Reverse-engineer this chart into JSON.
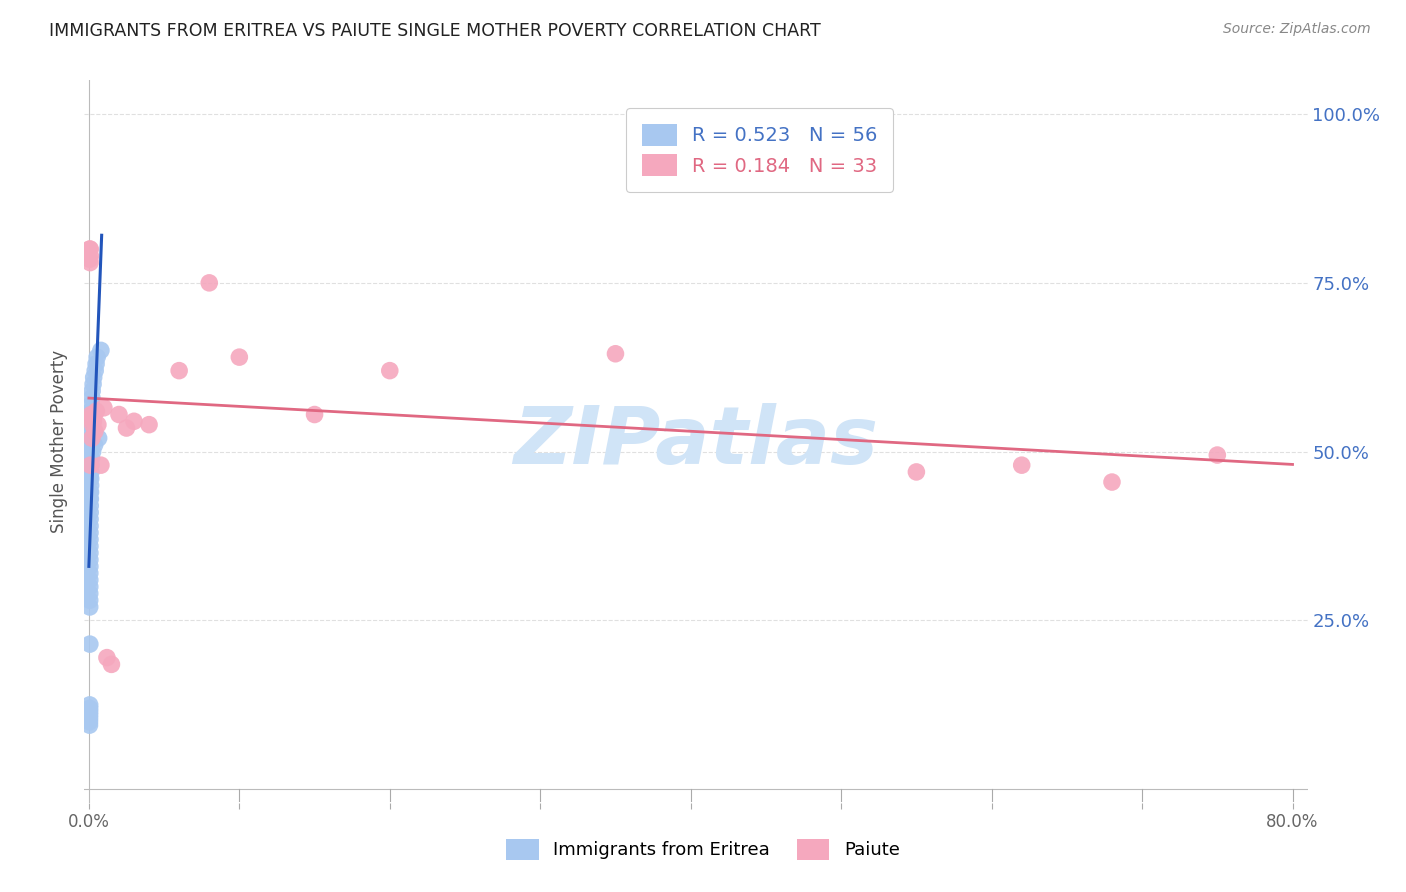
{
  "title": "IMMIGRANTS FROM ERITREA VS PAIUTE SINGLE MOTHER POVERTY CORRELATION CHART",
  "source": "Source: ZipAtlas.com",
  "ylabel": "Single Mother Poverty",
  "legend_eritrea_r": "0.523",
  "legend_eritrea_n": "56",
  "legend_paiute_r": "0.184",
  "legend_paiute_n": "33",
  "blue_color": "#a8c8f0",
  "pink_color": "#f5a8be",
  "blue_line_color": "#2255bb",
  "pink_line_color": "#e06882",
  "watermark_color": "#d0e4f7",
  "background_color": "#ffffff",
  "grid_color": "#e0e0e0",
  "right_axis_color": "#4472c4",
  "title_color": "#222222",
  "source_color": "#888888",
  "eritrea_x": [
    0.0004,
    0.00042,
    0.00045,
    0.00048,
    0.0005,
    0.0005,
    0.00052,
    0.00054,
    0.00055,
    0.00056,
    0.00058,
    0.0006,
    0.0006,
    0.00062,
    0.00063,
    0.00065,
    0.00065,
    0.00067,
    0.00068,
    0.0007,
    0.0007,
    0.0007,
    0.00072,
    0.00074,
    0.00075,
    0.00075,
    0.00078,
    0.0008,
    0.00082,
    0.00085,
    0.00088,
    0.0009,
    0.00092,
    0.00095,
    0.00098,
    0.001,
    0.00105,
    0.0011,
    0.00115,
    0.0012,
    0.0013,
    0.0014,
    0.0015,
    0.0016,
    0.0018,
    0.002,
    0.0022,
    0.0025,
    0.0028,
    0.0032,
    0.0038,
    0.0042,
    0.0048,
    0.0055,
    0.0065,
    0.008
  ],
  "eritrea_y": [
    0.095,
    0.1,
    0.105,
    0.11,
    0.115,
    0.43,
    0.12,
    0.125,
    0.27,
    0.28,
    0.29,
    0.3,
    0.44,
    0.31,
    0.32,
    0.215,
    0.46,
    0.33,
    0.34,
    0.35,
    0.36,
    0.47,
    0.48,
    0.37,
    0.38,
    0.49,
    0.39,
    0.4,
    0.5,
    0.51,
    0.41,
    0.42,
    0.52,
    0.53,
    0.43,
    0.54,
    0.55,
    0.44,
    0.45,
    0.46,
    0.56,
    0.47,
    0.48,
    0.57,
    0.49,
    0.58,
    0.59,
    0.5,
    0.6,
    0.61,
    0.51,
    0.62,
    0.63,
    0.64,
    0.52,
    0.65
  ],
  "paiute_x": [
    0.0005,
    0.00055,
    0.0008,
    0.0009,
    0.00095,
    0.001,
    0.0012,
    0.0015,
    0.002,
    0.0025,
    0.003,
    0.0035,
    0.004,
    0.005,
    0.006,
    0.008,
    0.01,
    0.012,
    0.015,
    0.02,
    0.025,
    0.03,
    0.04,
    0.06,
    0.08,
    0.1,
    0.15,
    0.2,
    0.35,
    0.55,
    0.62,
    0.68,
    0.75
  ],
  "paiute_y": [
    0.8,
    0.785,
    0.78,
    0.8,
    0.79,
    0.48,
    0.55,
    0.555,
    0.52,
    0.54,
    0.545,
    0.555,
    0.53,
    0.56,
    0.54,
    0.48,
    0.565,
    0.195,
    0.185,
    0.555,
    0.535,
    0.545,
    0.54,
    0.62,
    0.75,
    0.64,
    0.555,
    0.62,
    0.645,
    0.47,
    0.48,
    0.455,
    0.495
  ],
  "xlim_max": 0.8,
  "ylim_max": 1.05,
  "xtick_positions": [
    0.0,
    0.1,
    0.2,
    0.3,
    0.4,
    0.5,
    0.6,
    0.7,
    0.8
  ],
  "ytick_positions": [
    0.25,
    0.5,
    0.75,
    1.0
  ],
  "ytick_labels": [
    "25.0%",
    "50.0%",
    "75.0%",
    "100.0%"
  ]
}
